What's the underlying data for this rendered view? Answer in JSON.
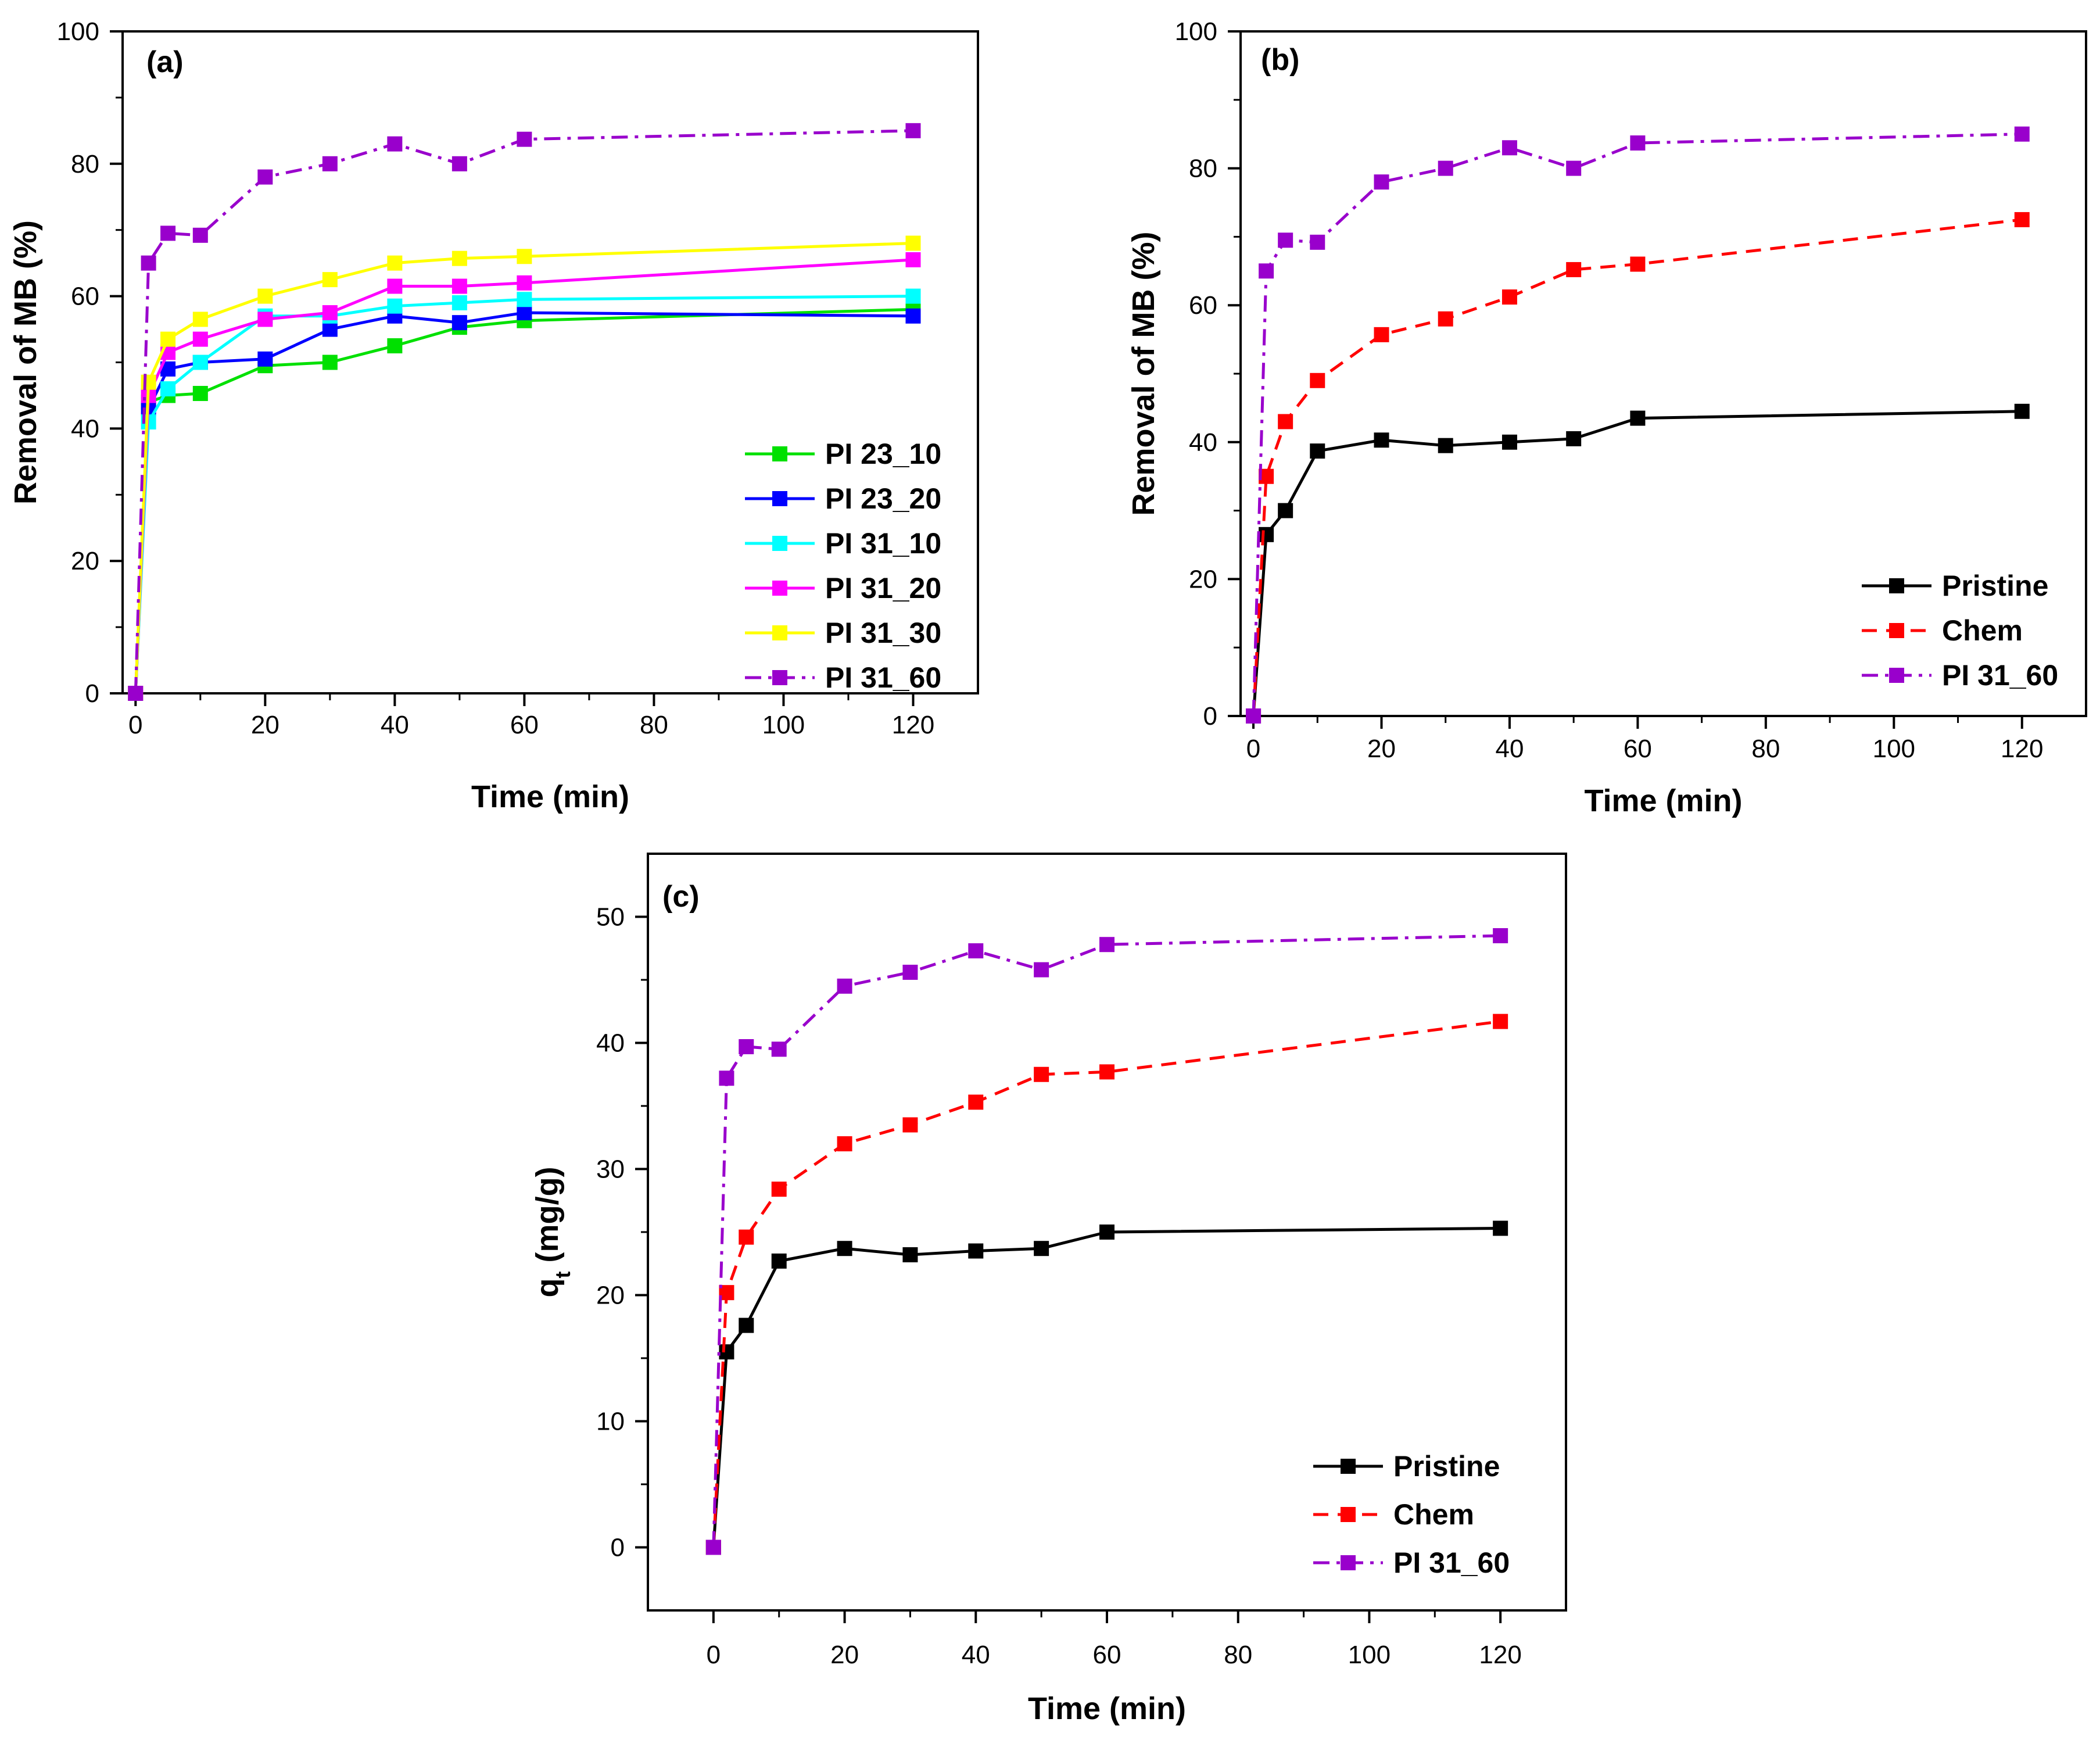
{
  "chart_data": [
    {
      "type": "line",
      "panel_label": "(a)",
      "title": "",
      "xlabel": "Time (min)",
      "ylabel": "Removal of MB (%)",
      "xlim": [
        -2,
        130
      ],
      "ylim": [
        0,
        100
      ],
      "xticks": [
        0,
        20,
        40,
        60,
        80,
        100,
        120
      ],
      "yticks": [
        0,
        20,
        40,
        60,
        80,
        100
      ],
      "legend_position": "bottom-right",
      "series": [
        {
          "name": "PI 23_10",
          "color": "#00e000",
          "dash": "solid",
          "x": [
            0,
            2,
            5,
            10,
            20,
            30,
            40,
            50,
            60,
            120
          ],
          "y": [
            0,
            44,
            45,
            45.3,
            49.5,
            50,
            52.5,
            55.3,
            56.3,
            58
          ]
        },
        {
          "name": "PI 23_20",
          "color": "#0000ff",
          "dash": "solid",
          "x": [
            0,
            2,
            5,
            10,
            20,
            30,
            40,
            50,
            60,
            120
          ],
          "y": [
            0,
            43,
            49,
            50,
            50.5,
            55,
            57,
            56,
            57.5,
            57
          ]
        },
        {
          "name": "PI 31_10",
          "color": "#00ffff",
          "dash": "solid",
          "x": [
            0,
            2,
            5,
            10,
            20,
            30,
            40,
            50,
            60,
            120
          ],
          "y": [
            0,
            41,
            46,
            50,
            57,
            57,
            58.5,
            59,
            59.5,
            60
          ]
        },
        {
          "name": "PI 31_20",
          "color": "#ff00ff",
          "dash": "solid",
          "x": [
            0,
            2,
            5,
            10,
            20,
            30,
            40,
            50,
            60,
            120
          ],
          "y": [
            0,
            45,
            51.5,
            53.5,
            56.5,
            57.5,
            61.5,
            61.5,
            62,
            65.5
          ]
        },
        {
          "name": "PI 31_30",
          "color": "#ffff00",
          "dash": "solid",
          "x": [
            0,
            2,
            5,
            10,
            20,
            30,
            40,
            50,
            60,
            120
          ],
          "y": [
            0,
            47,
            53.5,
            56.5,
            60,
            62.5,
            65,
            65.7,
            66,
            68
          ]
        },
        {
          "name": "PI 31_60",
          "color": "#9900cc",
          "dash": "dashdot",
          "x": [
            0,
            2,
            5,
            10,
            20,
            30,
            40,
            50,
            60,
            120
          ],
          "y": [
            0,
            65,
            69.5,
            69.2,
            78,
            80,
            83,
            80,
            83.7,
            85
          ]
        }
      ]
    },
    {
      "type": "line",
      "panel_label": "(b)",
      "title": "",
      "xlabel": "Time (min)",
      "ylabel": "Removal of MB (%)",
      "xlim": [
        -2,
        130
      ],
      "ylim": [
        0,
        100
      ],
      "xticks": [
        0,
        20,
        40,
        60,
        80,
        100,
        120
      ],
      "yticks": [
        0,
        20,
        40,
        60,
        80,
        100
      ],
      "legend_position": "bottom-right",
      "series": [
        {
          "name": "Pristine",
          "color": "#000000",
          "dash": "solid",
          "x": [
            0,
            2,
            5,
            10,
            20,
            30,
            40,
            50,
            60,
            120
          ],
          "y": [
            0,
            26.5,
            30,
            38.7,
            40.3,
            39.5,
            40,
            40.5,
            43.5,
            44.5
          ]
        },
        {
          "name": "Chem",
          "color": "#ff0000",
          "dash": "dashed",
          "x": [
            0,
            2,
            5,
            10,
            20,
            30,
            40,
            50,
            60,
            120
          ],
          "y": [
            0,
            35,
            43,
            49,
            55.7,
            58,
            61.2,
            65.2,
            66,
            72.5
          ]
        },
        {
          "name": "PI 31_60",
          "color": "#9900cc",
          "dash": "dashdot",
          "x": [
            0,
            2,
            5,
            10,
            20,
            30,
            40,
            50,
            60,
            120
          ],
          "y": [
            0,
            65,
            69.5,
            69.2,
            78,
            80,
            83,
            80,
            83.7,
            85
          ]
        }
      ]
    },
    {
      "type": "line",
      "panel_label": "(c)",
      "title": "",
      "xlabel": "Time (min)",
      "ylabel": "q",
      "ylabel_subscript": "t",
      "ylabel_suffix": " (mg/g)",
      "xlim": [
        -10,
        130
      ],
      "ylim": [
        -5,
        55
      ],
      "xticks": [
        0,
        20,
        40,
        60,
        80,
        100,
        120
      ],
      "yticks": [
        0,
        10,
        20,
        30,
        40,
        50
      ],
      "legend_position": "bottom-right",
      "series": [
        {
          "name": "Pristine",
          "color": "#000000",
          "dash": "solid",
          "x": [
            0,
            2,
            5,
            10,
            20,
            30,
            40,
            50,
            60,
            120
          ],
          "y": [
            0,
            15.5,
            17.6,
            22.7,
            23.7,
            23.2,
            23.5,
            23.7,
            25,
            25.3
          ]
        },
        {
          "name": "Chem",
          "color": "#ff0000",
          "dash": "dashed",
          "x": [
            0,
            2,
            5,
            10,
            20,
            30,
            40,
            50,
            60,
            120
          ],
          "y": [
            0,
            20.2,
            24.6,
            28.4,
            32,
            33.5,
            35.3,
            37.5,
            37.7,
            41.7
          ]
        },
        {
          "name": "PI 31_60",
          "color": "#9900cc",
          "dash": "dashdot",
          "x": [
            0,
            2,
            5,
            10,
            20,
            30,
            40,
            50,
            60,
            120
          ],
          "y": [
            0,
            37.2,
            39.7,
            39.5,
            44.5,
            45.6,
            47.3,
            45.8,
            47.8,
            48.5
          ]
        }
      ]
    }
  ]
}
